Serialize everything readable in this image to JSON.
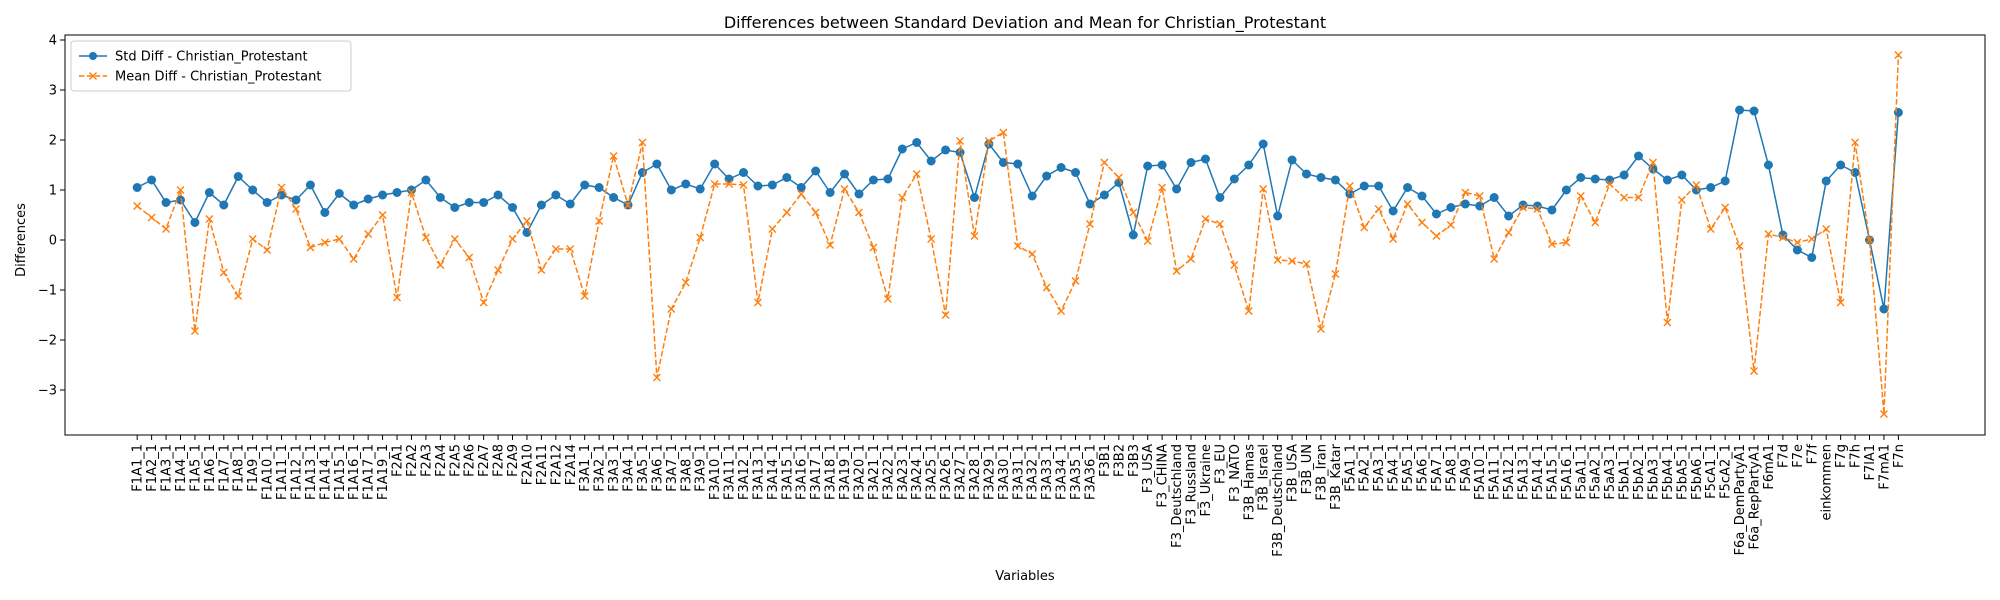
{
  "chart_data": {
    "type": "line",
    "title": "Differences between Standard Deviation and Mean for Christian_Protestant",
    "xlabel": "Variables",
    "ylabel": "Differences",
    "ylim": [
      -3.9,
      4.1
    ],
    "yticks": [
      -3,
      -2,
      -1,
      0,
      1,
      2,
      3,
      4
    ],
    "grid": false,
    "legend_position": "top-left",
    "categories": [
      "F1A1_1",
      "F1A2_1",
      "F1A3_1",
      "F1A4_1",
      "F1A5_1",
      "F1A6_1",
      "F1A7_1",
      "F1A8_1",
      "F1A9_1",
      "F1A10_1",
      "F1A11_1",
      "F1A12_1",
      "F1A13_1",
      "F1A14_1",
      "F1A15_1",
      "F1A16_1",
      "F1A17_1",
      "F1A19_1",
      "F2A1",
      "F2A2",
      "F2A3",
      "F2A4",
      "F2A5",
      "F2A6",
      "F2A7",
      "F2A8",
      "F2A9",
      "F2A10",
      "F2A11",
      "F2A12",
      "F2A14",
      "F3A1_1",
      "F3A2_1",
      "F3A3_1",
      "F3A4_1",
      "F3A5_1",
      "F3A6_1",
      "F3A7_1",
      "F3A8_1",
      "F3A9_1",
      "F3A10_1",
      "F3A11_1",
      "F3A12_1",
      "F3A13_1",
      "F3A14_1",
      "F3A15_1",
      "F3A16_1",
      "F3A17_1",
      "F3A18_1",
      "F3A19_1",
      "F3A20_1",
      "F3A21_1",
      "F3A22_1",
      "F3A23_1",
      "F3A24_1",
      "F3A25_1",
      "F3A26_1",
      "F3A27_1",
      "F3A28_1",
      "F3A29_1",
      "F3A30_1",
      "F3A31_1",
      "F3A32_1",
      "F3A33_1",
      "F3A34_1",
      "F3A35_1",
      "F3A36_1",
      "F3B1",
      "F3B2",
      "F3B3",
      "F3_USA",
      "F3_CHINA",
      "F3_Deutschland",
      "F3_Russland",
      "F3_Ukraine",
      "F3_EU",
      "F3_NATO",
      "F3B_Hamas",
      "F3B_Israel",
      "F3B_Deutschland",
      "F3B_USA",
      "F3B_UN",
      "F3B_Iran",
      "F3B_Katar",
      "F5A1_1",
      "F5A2_1",
      "F5A3_1",
      "F5A4_1",
      "F5A5_1",
      "F5A6_1",
      "F5A7_1",
      "F5A8_1",
      "F5A9_1",
      "F5A10_1",
      "F5A11_1",
      "F5A12_1",
      "F5A13_1",
      "F5A14_1",
      "F5A15_1",
      "F5A16_1",
      "F5aA1_1",
      "F5aA2_1",
      "F5aA3_1",
      "F5bA1_1",
      "F5bA2_1",
      "F5bA3_1",
      "F5bA4_1",
      "F5bA5_1",
      "F5bA6_1",
      "F5cA1_1",
      "F5cA2_1",
      "F6a_DemPartyA1",
      "F6a_RepPartyA1",
      "F6mA1",
      "F7d",
      "F7e",
      "F7f",
      "einkommen",
      "F7g",
      "F7h",
      "F7lA1",
      "F7mA1",
      "F7n"
    ],
    "series": [
      {
        "name": "Std Diff - Christian_Protestant",
        "color": "#1f77b4",
        "marker": "circle",
        "linestyle": "solid",
        "values": [
          1.05,
          1.2,
          0.75,
          0.8,
          0.35,
          0.95,
          0.7,
          1.27,
          1.0,
          0.75,
          0.9,
          0.8,
          1.1,
          0.55,
          0.93,
          0.7,
          0.82,
          0.9,
          0.95,
          1.0,
          1.2,
          0.85,
          0.65,
          0.75,
          0.75,
          0.9,
          0.65,
          0.15,
          0.7,
          0.9,
          0.72,
          1.1,
          1.05,
          0.85,
          0.7,
          1.35,
          1.52,
          1.0,
          1.12,
          1.02,
          1.52,
          1.22,
          1.35,
          1.08,
          1.1,
          1.25,
          1.05,
          1.38,
          0.95,
          1.32,
          0.92,
          1.2,
          1.22,
          1.82,
          1.95,
          1.58,
          1.8,
          1.75,
          0.85,
          1.92,
          1.55,
          1.52,
          0.88,
          1.28,
          1.45,
          1.35,
          0.72,
          0.9,
          1.15,
          0.1,
          1.48,
          1.5,
          1.02,
          1.55,
          1.62,
          0.85,
          1.22,
          1.5,
          1.92,
          0.48,
          1.6,
          1.32,
          1.25,
          1.2,
          0.92,
          1.08,
          1.08,
          0.58,
          1.05,
          0.88,
          0.52,
          0.65,
          0.72,
          0.68,
          0.85,
          0.48,
          0.7,
          0.68,
          0.6,
          1.0,
          1.25,
          1.22,
          1.2,
          1.3,
          1.68,
          1.42,
          1.2,
          1.3,
          1.0,
          1.05,
          1.18,
          2.6,
          2.58,
          1.5,
          0.1,
          -0.2,
          -0.35,
          1.18,
          1.5,
          1.35,
          0.0,
          -1.38,
          2.55
        ]
      },
      {
        "name": "Mean Diff - Christian_Protestant",
        "color": "#ff7f0e",
        "marker": "x",
        "linestyle": "dashed",
        "values": [
          0.68,
          0.45,
          0.22,
          1.0,
          -1.82,
          0.42,
          -0.65,
          -1.12,
          0.02,
          -0.2,
          1.05,
          0.62,
          -0.15,
          -0.05,
          0.02,
          -0.38,
          0.12,
          0.5,
          -1.15,
          0.95,
          0.05,
          -0.5,
          0.02,
          -0.35,
          -1.25,
          -0.6,
          0.02,
          0.38,
          -0.6,
          -0.18,
          -0.18,
          -1.12,
          0.38,
          1.68,
          0.7,
          1.95,
          -2.75,
          -1.38,
          -0.85,
          0.05,
          1.12,
          1.12,
          1.1,
          -1.25,
          0.22,
          0.55,
          0.92,
          0.55,
          -0.1,
          1.02,
          0.55,
          -0.15,
          -1.18,
          0.85,
          1.32,
          0.02,
          -1.5,
          1.98,
          0.08,
          1.98,
          2.15,
          -0.12,
          -0.28,
          -0.95,
          -1.42,
          -0.82,
          0.32,
          1.55,
          1.25,
          0.55,
          -0.02,
          1.05,
          -0.62,
          -0.38,
          0.42,
          0.32,
          -0.5,
          -1.42,
          1.02,
          -0.4,
          -0.42,
          -0.48,
          -1.78,
          -0.68,
          1.08,
          0.25,
          0.62,
          0.02,
          0.72,
          0.35,
          0.08,
          0.3,
          0.95,
          0.88,
          -0.38,
          0.15,
          0.65,
          0.62,
          -0.08,
          -0.05,
          0.88,
          0.35,
          1.12,
          0.85,
          0.85,
          1.55,
          -1.65,
          0.8,
          1.1,
          0.22,
          0.65,
          -0.12,
          -2.62,
          0.12,
          0.05,
          -0.05,
          0.02,
          0.22,
          -1.25,
          1.95,
          0.0,
          -3.48,
          3.7
        ]
      }
    ]
  }
}
